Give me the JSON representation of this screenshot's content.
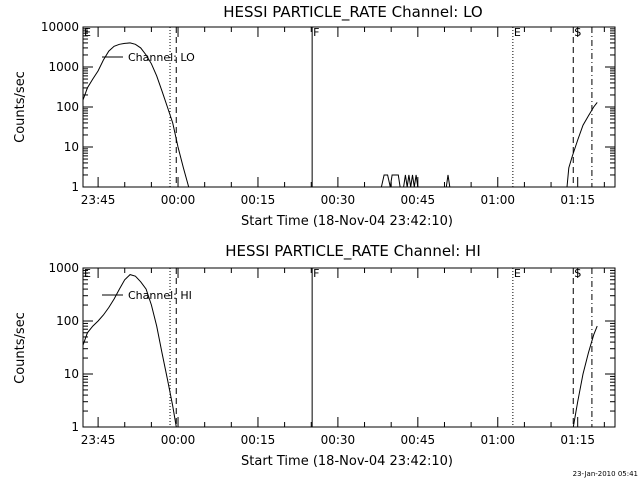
{
  "chart_data": [
    {
      "type": "line",
      "title": "HESSI PARTICLE_RATE Channel: LO",
      "xlabel": "Start Time (18-Nov-04 23:42:10)",
      "ylabel": "Counts/sec",
      "yscale": "log",
      "ylim": [
        1,
        10000
      ],
      "xlim": [
        "23:42:10",
        "01:22:00"
      ],
      "x_tick_labels": [
        "23:45",
        "00:00",
        "00:15",
        "00:30",
        "00:45",
        "01:00",
        "01:15"
      ],
      "y_tick_labels": [
        "1",
        "10",
        "100",
        "1000",
        "10000"
      ],
      "legend": [
        "Channel: LO"
      ],
      "markers": [
        {
          "label": "E",
          "time": "23:42:10",
          "style": "none"
        },
        {
          "label": "",
          "time": "23:58:30",
          "style": "dotted"
        },
        {
          "label": "",
          "time": "23:59:40",
          "style": "dashed"
        },
        {
          "label": "F",
          "time": "00:25:10",
          "style": "solid"
        },
        {
          "label": "E",
          "time": "01:02:50",
          "style": "dotted"
        },
        {
          "label": "S",
          "time": "01:14:10",
          "style": "dashed"
        },
        {
          "label": "",
          "time": "01:17:40",
          "style": "dash-dot"
        }
      ],
      "series": [
        {
          "segments": [
            [
              [
                "23:42:10",
                150
              ],
              [
                "23:43:00",
                300
              ],
              [
                "23:44:00",
                500
              ],
              [
                "23:45:00",
                800
              ],
              [
                "23:46:00",
                1500
              ],
              [
                "23:47:00",
                2500
              ],
              [
                "23:48:00",
                3300
              ],
              [
                "23:49:00",
                3700
              ],
              [
                "23:50:00",
                3900
              ],
              [
                "23:51:00",
                4000
              ],
              [
                "23:52:00",
                3700
              ],
              [
                "23:53:00",
                3000
              ],
              [
                "23:54:00",
                2000
              ],
              [
                "23:55:00",
                1200
              ],
              [
                "23:56:00",
                600
              ],
              [
                "23:57:00",
                250
              ],
              [
                "23:58:00",
                100
              ],
              [
                "23:59:00",
                40
              ],
              [
                "00:00:00",
                10
              ],
              [
                "00:01:00",
                3
              ],
              [
                "00:02:00",
                1
              ]
            ],
            [
              [
                "00:38:10",
                1
              ],
              [
                "00:38:40",
                2
              ],
              [
                "00:39:20",
                2
              ],
              [
                "00:39:50",
                1
              ],
              [
                "00:40:10",
                2
              ],
              [
                "00:41:20",
                2
              ],
              [
                "00:41:40",
                1
              ]
            ],
            [
              [
                "00:42:20",
                1
              ],
              [
                "00:42:40",
                2
              ],
              [
                "00:43:00",
                1
              ],
              [
                "00:43:20",
                2
              ],
              [
                "00:43:40",
                1
              ],
              [
                "00:44:00",
                2
              ],
              [
                "00:44:20",
                1
              ],
              [
                "00:44:40",
                2
              ],
              [
                "00:45:00",
                1
              ]
            ],
            [
              [
                "00:50:20",
                1
              ],
              [
                "00:50:40",
                2
              ],
              [
                "00:51:00",
                1
              ]
            ],
            [
              [
                "01:13:00",
                1
              ],
              [
                "01:13:20",
                3
              ],
              [
                "01:14:00",
                6
              ],
              [
                "01:15:00",
                15
              ],
              [
                "01:16:00",
                35
              ],
              [
                "01:17:00",
                60
              ],
              [
                "01:18:00",
                100
              ],
              [
                "01:18:40",
                130
              ]
            ]
          ]
        }
      ]
    },
    {
      "type": "line",
      "title": "HESSI PARTICLE_RATE Channel: HI",
      "xlabel": "Start Time (18-Nov-04 23:42:10)",
      "ylabel": "Counts/sec",
      "yscale": "log",
      "ylim": [
        1,
        1000
      ],
      "xlim": [
        "23:42:10",
        "01:22:00"
      ],
      "x_tick_labels": [
        "23:45",
        "00:00",
        "00:15",
        "00:30",
        "00:45",
        "01:00",
        "01:15"
      ],
      "y_tick_labels": [
        "1",
        "10",
        "100",
        "1000"
      ],
      "legend": [
        "Channel: HI"
      ],
      "markers": [
        {
          "label": "E",
          "time": "23:42:10",
          "style": "none"
        },
        {
          "label": "",
          "time": "23:58:30",
          "style": "dotted"
        },
        {
          "label": "",
          "time": "23:59:40",
          "style": "dashed"
        },
        {
          "label": "F",
          "time": "00:25:10",
          "style": "solid"
        },
        {
          "label": "E",
          "time": "01:02:50",
          "style": "dotted"
        },
        {
          "label": "S",
          "time": "01:14:10",
          "style": "dashed"
        },
        {
          "label": "",
          "time": "01:17:40",
          "style": "dash-dot"
        }
      ],
      "series": [
        {
          "segments": [
            [
              [
                "23:42:10",
                35
              ],
              [
                "23:43:00",
                60
              ],
              [
                "23:44:00",
                80
              ],
              [
                "23:45:00",
                100
              ],
              [
                "23:46:00",
                130
              ],
              [
                "23:47:00",
                180
              ],
              [
                "23:48:00",
                260
              ],
              [
                "23:49:00",
                400
              ],
              [
                "23:50:00",
                600
              ],
              [
                "23:51:00",
                750
              ],
              [
                "23:52:00",
                700
              ],
              [
                "23:53:00",
                550
              ],
              [
                "23:54:00",
                400
              ],
              [
                "23:55:00",
                200
              ],
              [
                "23:56:00",
                80
              ],
              [
                "23:57:00",
                25
              ],
              [
                "23:58:00",
                8
              ],
              [
                "23:59:00",
                2.5
              ],
              [
                "23:59:40",
                1
              ]
            ],
            [
              [
                "01:14:10",
                1
              ],
              [
                "01:15:00",
                3
              ],
              [
                "01:16:00",
                10
              ],
              [
                "01:17:00",
                25
              ],
              [
                "01:18:00",
                55
              ],
              [
                "01:18:40",
                80
              ]
            ]
          ]
        }
      ]
    }
  ],
  "footer": {
    "timestamp": "23-Jan-2010 05:41"
  },
  "colors": {
    "background": "#ffffff",
    "foreground": "#000000"
  }
}
